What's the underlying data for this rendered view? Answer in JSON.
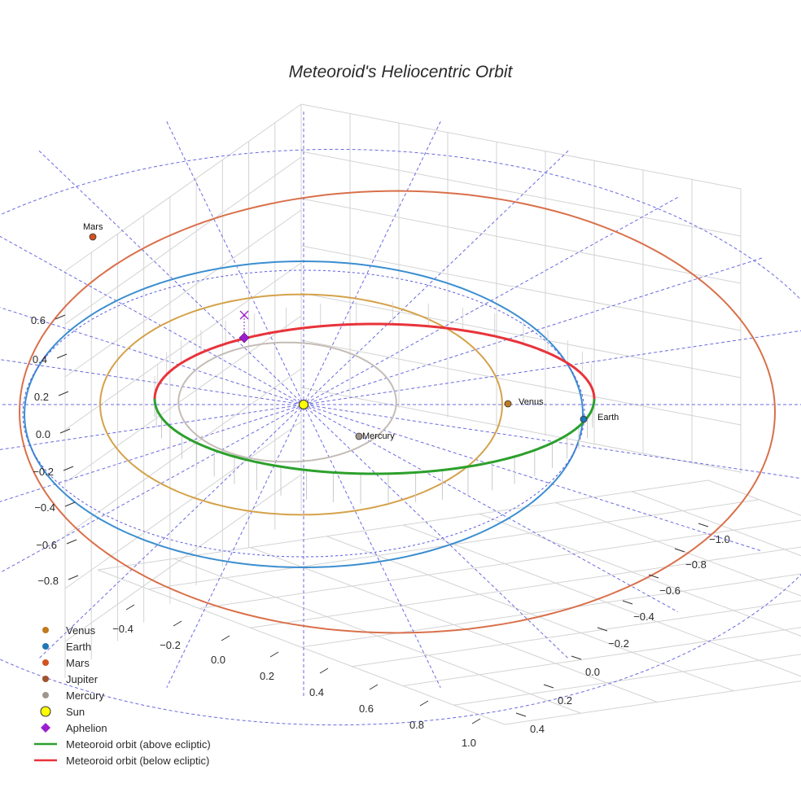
{
  "chart_data": {
    "type": "line",
    "title": "Meteoroid's Heliocentric Orbit",
    "xlabel": "",
    "ylabel": "",
    "zlabel": "",
    "grid": true,
    "legend_position": "bottom-left",
    "axes": {
      "x": {
        "ticks": [
          -0.4,
          -0.2,
          0.0,
          0.2,
          0.4,
          0.6,
          0.8,
          1.0
        ],
        "tick_labels": [
          "−0.4",
          "−0.2",
          "0.0",
          "0.2",
          "0.4",
          "0.6",
          "0.8",
          "1.0"
        ]
      },
      "y": {
        "ticks": [
          -1.0,
          -0.8,
          -0.6,
          -0.4,
          -0.2,
          0.0,
          0.2,
          0.4
        ],
        "tick_labels": [
          "−1.0",
          "−0.8",
          "−0.6",
          "−0.4",
          "−0.2",
          "0.0",
          "0.2",
          "0.4"
        ]
      },
      "z": {
        "ticks": [
          -0.8,
          -0.6,
          -0.4,
          -0.2,
          0.0,
          0.2,
          0.4,
          0.6
        ],
        "tick_labels": [
          "−0.8",
          "−0.6",
          "−0.4",
          "−0.2",
          "0.0",
          "0.2",
          "0.4",
          "0.6"
        ]
      }
    },
    "bodies": [
      {
        "name": "Venus",
        "label": "Venus",
        "color": "#c07a1e",
        "orbit_color": "#d4a24a",
        "semi_major_au": 0.72,
        "label_shown": true
      },
      {
        "name": "Earth",
        "label": "Earth",
        "color": "#1f77b4",
        "orbit_color": "#3b8ed0",
        "semi_major_au": 1.0,
        "label_shown": true
      },
      {
        "name": "Mars",
        "label": "Mars",
        "color": "#d2521f",
        "orbit_color": "#d9704a",
        "semi_major_au": 1.52,
        "label_shown": true
      },
      {
        "name": "Mercury",
        "label": "Mercury",
        "color": "#a0958c",
        "orbit_color": "#c4bcb6",
        "semi_major_au": 0.39,
        "label_shown": true
      },
      {
        "name": "Jupiter",
        "label": "",
        "color": "#a0522d",
        "orbit_color": "#6a6ae0",
        "semi_major_au": 5.2,
        "label_shown": false
      }
    ],
    "series": [
      {
        "name": "Meteoroid orbit (above ecliptic)",
        "color": "#2ca02c"
      },
      {
        "name": "Meteoroid orbit (below ecliptic)",
        "color": "#e8333a"
      }
    ],
    "markers": [
      {
        "name": "Sun",
        "color": "#ffff00"
      },
      {
        "name": "Aphelion",
        "color": "#9b1fcf"
      }
    ]
  },
  "legend": {
    "items": [
      {
        "label": "Venus",
        "kind": "dot",
        "color": "#c07a1e"
      },
      {
        "label": "Earth",
        "kind": "dot",
        "color": "#1f77b4"
      },
      {
        "label": "Mars",
        "kind": "dot",
        "color": "#d2521f"
      },
      {
        "label": "Jupiter",
        "kind": "dot",
        "color": "#a0522d"
      },
      {
        "label": "Mercury",
        "kind": "dot",
        "color": "#a0958c"
      },
      {
        "label": "Sun",
        "kind": "sun",
        "color": "#ffff00"
      },
      {
        "label": "Aphelion",
        "kind": "diamond",
        "color": "#9b1fcf"
      },
      {
        "label": "Meteoroid orbit (above ecliptic)",
        "kind": "line",
        "color": "#2ca02c"
      },
      {
        "label": "Meteoroid orbit (below ecliptic)",
        "kind": "line",
        "color": "#e8333a"
      }
    ]
  }
}
